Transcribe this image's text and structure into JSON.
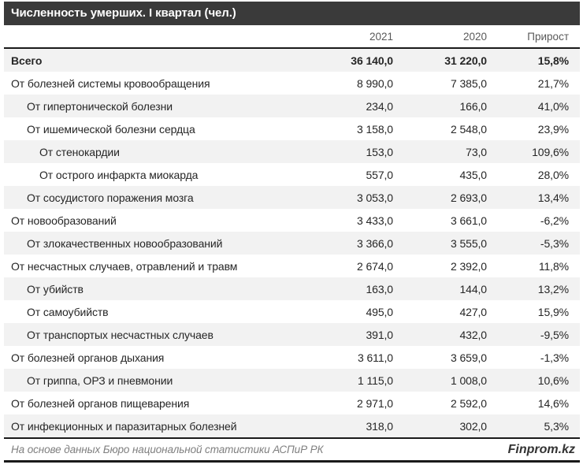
{
  "colors": {
    "title_bar_bg": "#3a3a3a",
    "title_text": "#ffffff",
    "col_header_text": "#595959",
    "body_text": "#262626",
    "row_stripe": "#f2f2f2",
    "rule_dark": "#1a1a1a",
    "source_text": "#7f7f7f",
    "brand_text": "#333333"
  },
  "chart_data": {
    "type": "table",
    "title": "Численность умерших. I квартал (чел.)",
    "columns": [
      "2021",
      "2020",
      "Прирост"
    ],
    "rows": [
      {
        "label": "Всего",
        "indent": 0,
        "bold": true,
        "v2021": "36 140,0",
        "v2020": "31 220,0",
        "growth": "15,8%"
      },
      {
        "label": "От болезней системы кровообращения",
        "indent": 0,
        "bold": false,
        "v2021": "8 990,0",
        "v2020": "7 385,0",
        "growth": "21,7%"
      },
      {
        "label": "От гипертонической болезни",
        "indent": 1,
        "bold": false,
        "v2021": "234,0",
        "v2020": "166,0",
        "growth": "41,0%"
      },
      {
        "label": "От ишемической болезни сердца",
        "indent": 1,
        "bold": false,
        "v2021": "3 158,0",
        "v2020": "2 548,0",
        "growth": "23,9%"
      },
      {
        "label": "От стенокардии",
        "indent": 2,
        "bold": false,
        "v2021": "153,0",
        "v2020": "73,0",
        "growth": "109,6%"
      },
      {
        "label": "От острого инфаркта миокарда",
        "indent": 2,
        "bold": false,
        "v2021": "557,0",
        "v2020": "435,0",
        "growth": "28,0%"
      },
      {
        "label": "От сосудистого поражения мозга",
        "indent": 1,
        "bold": false,
        "v2021": "3 053,0",
        "v2020": "2 693,0",
        "growth": "13,4%"
      },
      {
        "label": "От новообразований",
        "indent": 0,
        "bold": false,
        "v2021": "3 433,0",
        "v2020": "3 661,0",
        "growth": "-6,2%"
      },
      {
        "label": "От злокачественных новообразований",
        "indent": 1,
        "bold": false,
        "v2021": "3 366,0",
        "v2020": "3 555,0",
        "growth": "-5,3%"
      },
      {
        "label": "От несчастных случаев, отравлений и травм",
        "indent": 0,
        "bold": false,
        "v2021": "2 674,0",
        "v2020": "2 392,0",
        "growth": "11,8%"
      },
      {
        "label": "От убийств",
        "indent": 1,
        "bold": false,
        "v2021": "163,0",
        "v2020": "144,0",
        "growth": "13,2%"
      },
      {
        "label": "От самоубийств",
        "indent": 1,
        "bold": false,
        "v2021": "495,0",
        "v2020": "427,0",
        "growth": "15,9%"
      },
      {
        "label": "От транспортых несчастных случаев",
        "indent": 1,
        "bold": false,
        "v2021": "391,0",
        "v2020": "432,0",
        "growth": "-9,5%"
      },
      {
        "label": "От болезней органов дыхания",
        "indent": 0,
        "bold": false,
        "v2021": "3 611,0",
        "v2020": "3 659,0",
        "growth": "-1,3%"
      },
      {
        "label": "От гриппа, ОРЗ и пневмонии",
        "indent": 1,
        "bold": false,
        "v2021": "1 115,0",
        "v2020": "1 008,0",
        "growth": "10,6%"
      },
      {
        "label": "От болезней органов пищеварения",
        "indent": 0,
        "bold": false,
        "v2021": "2 971,0",
        "v2020": "2 592,0",
        "growth": "14,6%"
      },
      {
        "label": "От инфекционных и паразитарных болезней",
        "indent": 0,
        "bold": false,
        "v2021": "318,0",
        "v2020": "302,0",
        "growth": "5,3%"
      }
    ],
    "source": "На основе данных Бюро национальной статистики АСПиР РК",
    "brand": "Finprom.kz"
  }
}
